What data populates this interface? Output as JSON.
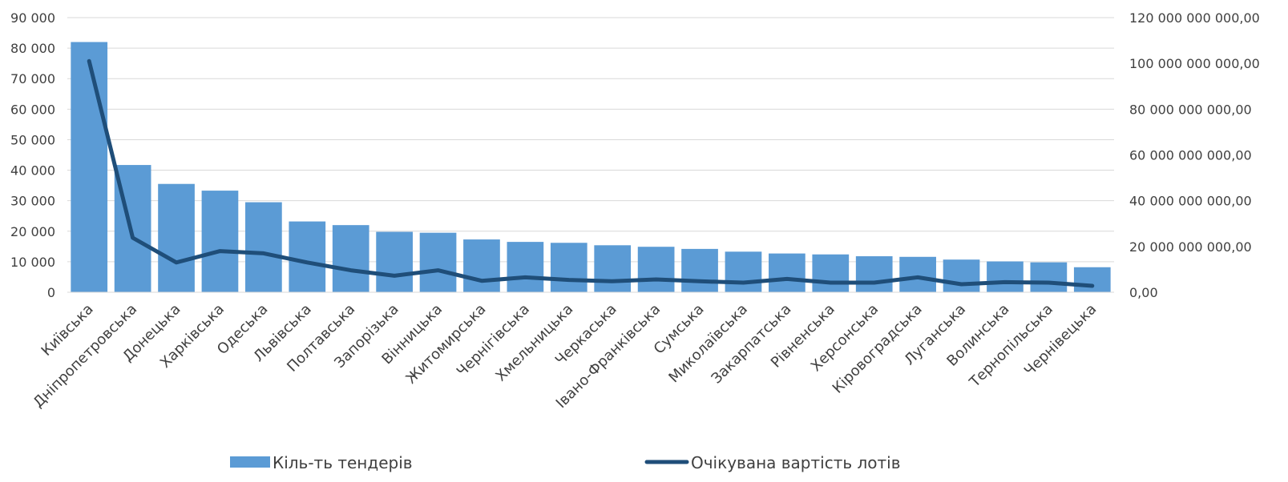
{
  "chart_data": {
    "type": "bar",
    "categories": [
      "Київська",
      "Дніпропетровська",
      "Донецька",
      "Харківська",
      "Одеська",
      "Львівська",
      "Полтавська",
      "Запорізька",
      "Вінницька",
      "Житомирська",
      "Чернігівська",
      "Хмельницька",
      "Черкаська",
      "Івано-Франківська",
      "Сумська",
      "Миколаївська",
      "Закарпатська",
      "Рівненська",
      "Херсонська",
      "Кіровоградська",
      "Луганська",
      "Волинська",
      "Тернопільська",
      "Чернівецька"
    ],
    "series": [
      {
        "name": "Кіль-ть тендерів",
        "type": "bar",
        "axis": "left",
        "color": "#5b9bd5",
        "values": [
          82000,
          41700,
          35500,
          33300,
          29500,
          23200,
          22000,
          19800,
          19500,
          17300,
          16500,
          16200,
          15400,
          14900,
          14200,
          13300,
          12700,
          12400,
          11800,
          11600,
          10700,
          10100,
          9800,
          8200
        ]
      },
      {
        "name": "Очікувана вартість лотів",
        "type": "line",
        "axis": "right",
        "color": "#1f4e79",
        "values": [
          101000000000,
          23800000000,
          13000000000,
          18000000000,
          17000000000,
          13000000000,
          9600000000,
          7200000000,
          9600000000,
          5000000000,
          6500000000,
          5400000000,
          4800000000,
          5600000000,
          4800000000,
          4200000000,
          5800000000,
          4200000000,
          4200000000,
          6500000000,
          3500000000,
          4400000000,
          4200000000,
          2800000000
        ]
      }
    ],
    "y_left": {
      "lim": [
        0,
        90000
      ],
      "ticks": [
        "0",
        "10 000",
        "20 000",
        "30 000",
        "40 000",
        "50 000",
        "60 000",
        "70 000",
        "80 000",
        "90 000"
      ]
    },
    "y_right": {
      "lim": [
        0,
        120000000000
      ],
      "ticks": [
        "0,00",
        "20 000 000 000,00",
        "40 000 000 000,00",
        "60 000 000 000,00",
        "80 000 000 000,00",
        "100 000 000 000,00",
        "120 000 000 000,00"
      ]
    },
    "grid": true,
    "legend_position": "bottom"
  }
}
